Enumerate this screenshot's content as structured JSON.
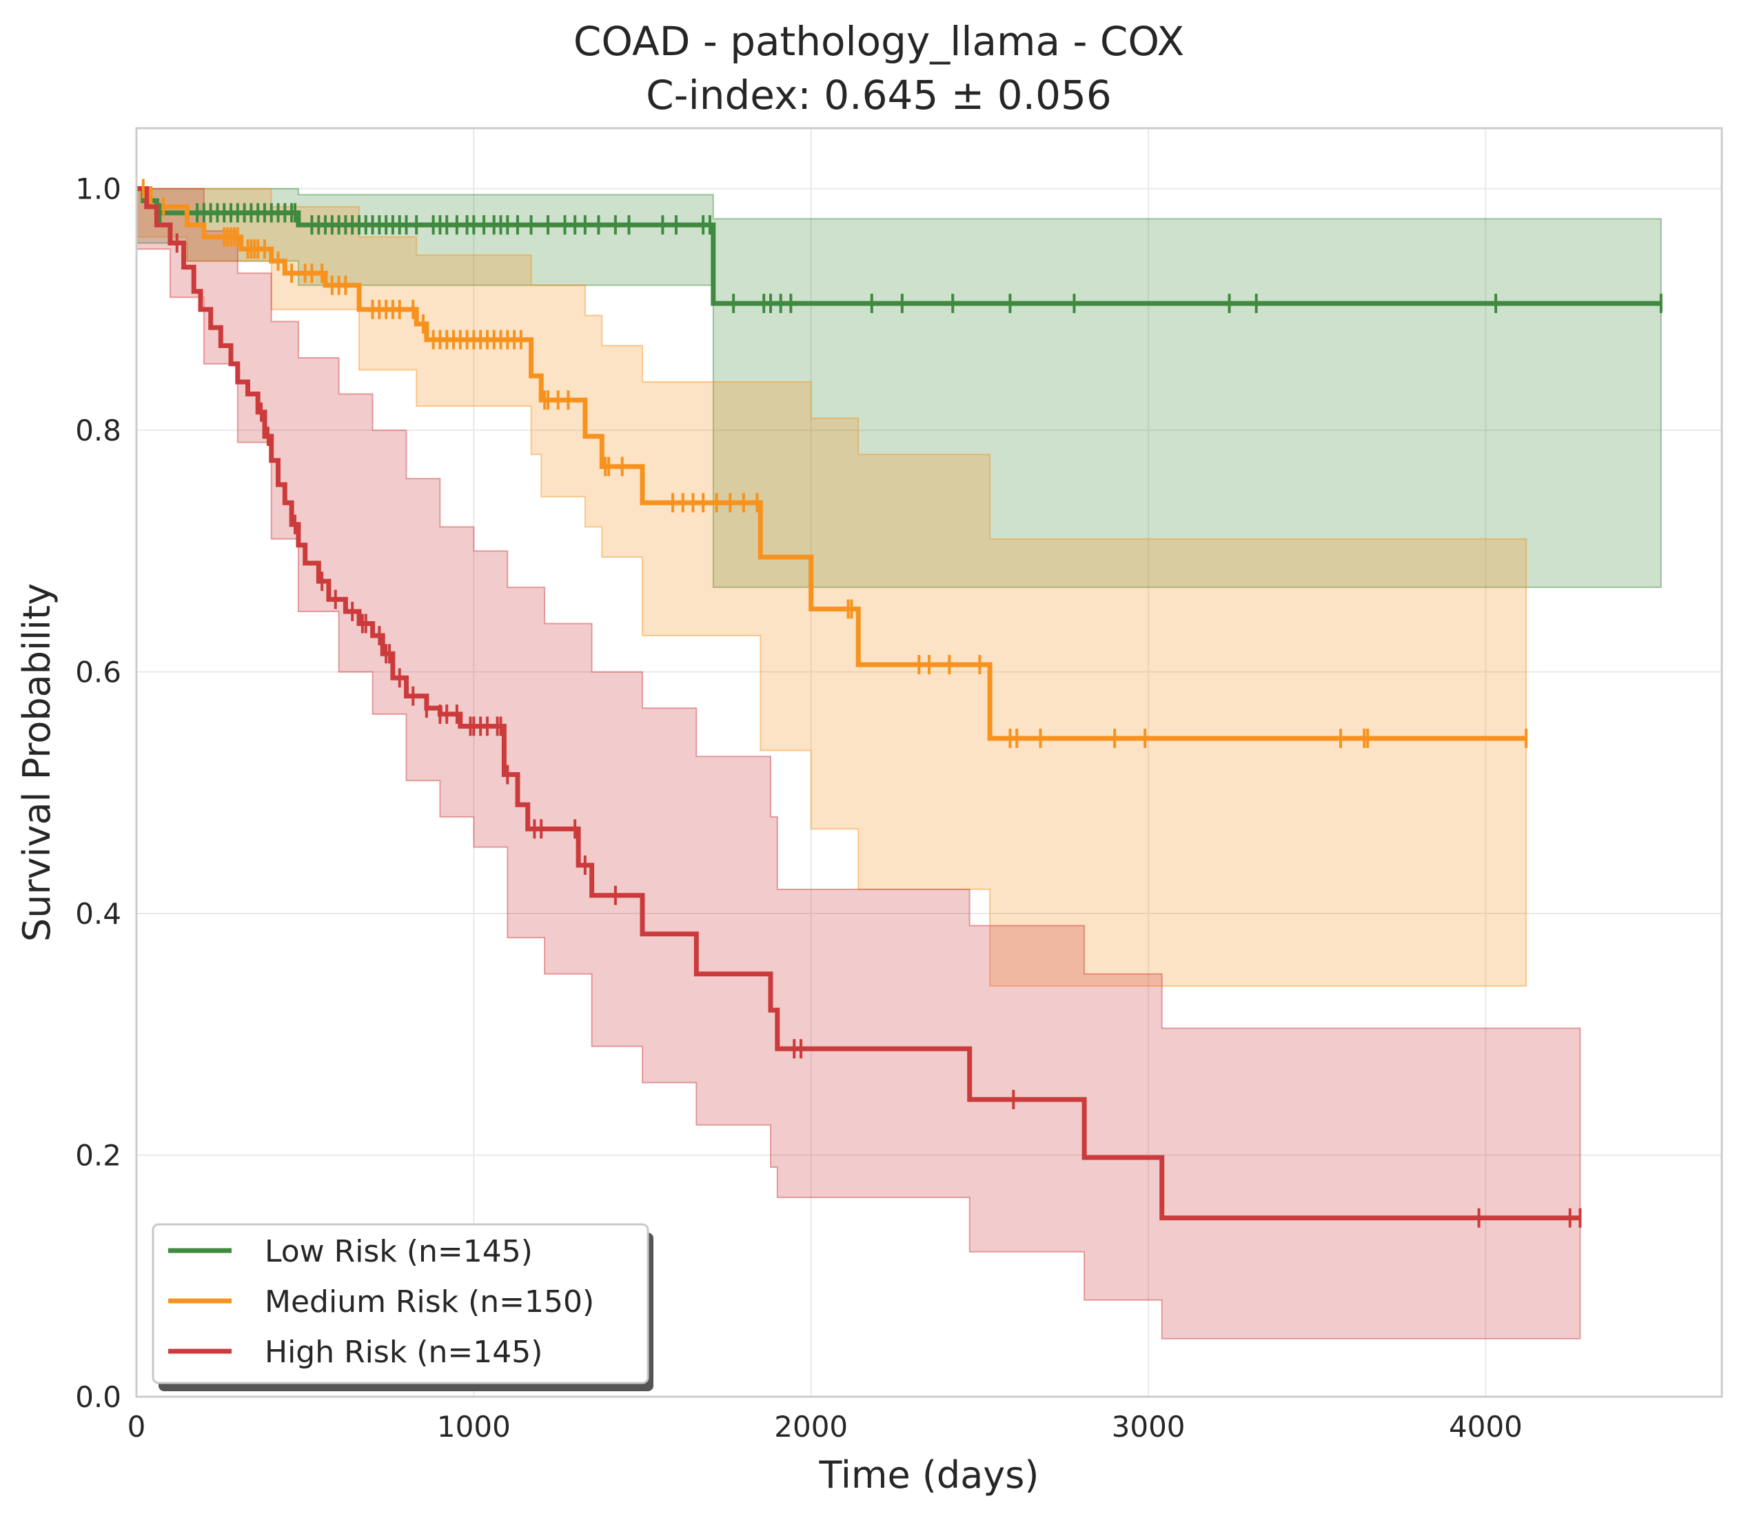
{
  "chart_data": {
    "type": "line",
    "title": "COAD - pathology_llama - COX",
    "subtitle": "C-index: 0.645 ± 0.056",
    "xlabel": "Time (days)",
    "ylabel": "Survival Probability",
    "xlim": [
      0,
      4700
    ],
    "ylim": [
      0,
      1.05
    ],
    "xticks": [
      0,
      1000,
      2000,
      3000,
      4000
    ],
    "xtick_labels": [
      "0",
      "1000",
      "2000",
      "3000",
      "4000"
    ],
    "yticks": [
      0.0,
      0.2,
      0.4,
      0.6,
      0.8,
      1.0
    ],
    "ytick_labels": [
      "0.0",
      "0.2",
      "0.4",
      "0.6",
      "0.8",
      "1.0"
    ],
    "grid": true,
    "legend_position": "bottom-left",
    "series": [
      {
        "name": "Low Risk (n=145)",
        "color": "#3f8a3f",
        "steps": [
          [
            0,
            1.0
          ],
          [
            20,
            0.99
          ],
          [
            60,
            0.98
          ],
          [
            480,
            0.97
          ],
          [
            1710,
            0.905
          ],
          [
            4520,
            0.905
          ]
        ],
        "ci_upper": [
          [
            0,
            1.0
          ],
          [
            480,
            0.995
          ],
          [
            1710,
            0.99
          ],
          [
            1710,
            0.975
          ],
          [
            4520,
            0.975
          ]
        ],
        "ci_lower": [
          [
            0,
            0.955
          ],
          [
            150,
            0.94
          ],
          [
            480,
            0.92
          ],
          [
            1710,
            0.67
          ],
          [
            4520,
            0.67
          ]
        ],
        "censor_times": [
          70,
          180,
          200,
          220,
          240,
          260,
          280,
          300,
          320,
          340,
          360,
          380,
          400,
          420,
          440,
          460,
          470,
          520,
          540,
          560,
          580,
          600,
          620,
          640,
          660,
          680,
          700,
          720,
          740,
          760,
          780,
          800,
          830,
          880,
          900,
          920,
          950,
          980,
          1000,
          1030,
          1060,
          1080,
          1100,
          1130,
          1170,
          1220,
          1270,
          1300,
          1330,
          1370,
          1420,
          1460,
          1560,
          1600,
          1680,
          1700,
          1770,
          1860,
          1880,
          1910,
          1940,
          2180,
          2270,
          2420,
          2590,
          2780,
          3240,
          3320,
          4030,
          4520
        ]
      },
      {
        "name": "Medium Risk (n=150)",
        "color": "#f7921e",
        "steps": [
          [
            0,
            1.0
          ],
          [
            40,
            0.985
          ],
          [
            150,
            0.97
          ],
          [
            200,
            0.96
          ],
          [
            310,
            0.95
          ],
          [
            400,
            0.94
          ],
          [
            440,
            0.93
          ],
          [
            560,
            0.92
          ],
          [
            660,
            0.9
          ],
          [
            830,
            0.888
          ],
          [
            860,
            0.875
          ],
          [
            1170,
            0.845
          ],
          [
            1200,
            0.825
          ],
          [
            1330,
            0.795
          ],
          [
            1380,
            0.77
          ],
          [
            1500,
            0.74
          ],
          [
            1850,
            0.695
          ],
          [
            2000,
            0.652
          ],
          [
            2140,
            0.606
          ],
          [
            2530,
            0.545
          ],
          [
            4120,
            0.545
          ]
        ],
        "ci_upper": [
          [
            0,
            1.0
          ],
          [
            150,
            1.0
          ],
          [
            400,
            0.985
          ],
          [
            660,
            0.96
          ],
          [
            830,
            0.945
          ],
          [
            1170,
            0.92
          ],
          [
            1330,
            0.895
          ],
          [
            1380,
            0.87
          ],
          [
            1500,
            0.84
          ],
          [
            1850,
            0.84
          ],
          [
            2000,
            0.81
          ],
          [
            2140,
            0.78
          ],
          [
            2530,
            0.75
          ],
          [
            2530,
            0.71
          ],
          [
            4120,
            0.71
          ]
        ],
        "ci_lower": [
          [
            0,
            0.96
          ],
          [
            150,
            0.94
          ],
          [
            400,
            0.9
          ],
          [
            660,
            0.85
          ],
          [
            830,
            0.82
          ],
          [
            1170,
            0.78
          ],
          [
            1200,
            0.745
          ],
          [
            1330,
            0.72
          ],
          [
            1380,
            0.695
          ],
          [
            1500,
            0.63
          ],
          [
            1850,
            0.535
          ],
          [
            2000,
            0.47
          ],
          [
            2140,
            0.42
          ],
          [
            2530,
            0.34
          ],
          [
            4120,
            0.34
          ]
        ],
        "censor_times": [
          20,
          80,
          260,
          270,
          280,
          290,
          300,
          330,
          340,
          350,
          360,
          380,
          420,
          460,
          500,
          520,
          550,
          580,
          600,
          620,
          700,
          720,
          740,
          760,
          780,
          820,
          850,
          880,
          900,
          920,
          940,
          960,
          980,
          1000,
          1020,
          1040,
          1060,
          1080,
          1100,
          1120,
          1140,
          1210,
          1220,
          1250,
          1280,
          1390,
          1400,
          1440,
          1590,
          1620,
          1650,
          1680,
          1720,
          1760,
          1800,
          1840,
          2110,
          2120,
          2320,
          2350,
          2410,
          2500,
          2590,
          2610,
          2680,
          2900,
          2990,
          3570,
          3640,
          3650,
          4120
        ]
      },
      {
        "name": "High Risk (n=145)",
        "color": "#cc3b3b",
        "steps": [
          [
            0,
            1.0
          ],
          [
            30,
            0.985
          ],
          [
            60,
            0.97
          ],
          [
            100,
            0.955
          ],
          [
            140,
            0.935
          ],
          [
            170,
            0.915
          ],
          [
            190,
            0.9
          ],
          [
            220,
            0.885
          ],
          [
            250,
            0.87
          ],
          [
            280,
            0.855
          ],
          [
            300,
            0.84
          ],
          [
            330,
            0.83
          ],
          [
            360,
            0.815
          ],
          [
            380,
            0.795
          ],
          [
            400,
            0.775
          ],
          [
            420,
            0.755
          ],
          [
            440,
            0.74
          ],
          [
            460,
            0.722
          ],
          [
            480,
            0.705
          ],
          [
            500,
            0.69
          ],
          [
            540,
            0.675
          ],
          [
            570,
            0.66
          ],
          [
            620,
            0.65
          ],
          [
            660,
            0.64
          ],
          [
            700,
            0.63
          ],
          [
            730,
            0.615
          ],
          [
            760,
            0.595
          ],
          [
            800,
            0.58
          ],
          [
            860,
            0.57
          ],
          [
            900,
            0.565
          ],
          [
            960,
            0.555
          ],
          [
            1090,
            0.515
          ],
          [
            1130,
            0.49
          ],
          [
            1160,
            0.47
          ],
          [
            1210,
            0.47
          ],
          [
            1310,
            0.44
          ],
          [
            1350,
            0.415
          ],
          [
            1500,
            0.383
          ],
          [
            1660,
            0.35
          ],
          [
            1880,
            0.32
          ],
          [
            1900,
            0.288
          ],
          [
            2470,
            0.246
          ],
          [
            2810,
            0.198
          ],
          [
            3040,
            0.148
          ],
          [
            4280,
            0.148
          ]
        ],
        "ci_upper": [
          [
            0,
            1.0
          ],
          [
            100,
            1.0
          ],
          [
            200,
            0.965
          ],
          [
            300,
            0.93
          ],
          [
            400,
            0.89
          ],
          [
            480,
            0.86
          ],
          [
            600,
            0.83
          ],
          [
            700,
            0.8
          ],
          [
            800,
            0.76
          ],
          [
            900,
            0.72
          ],
          [
            1000,
            0.7
          ],
          [
            1100,
            0.67
          ],
          [
            1210,
            0.64
          ],
          [
            1350,
            0.6
          ],
          [
            1500,
            0.57
          ],
          [
            1660,
            0.53
          ],
          [
            1880,
            0.48
          ],
          [
            1900,
            0.42
          ],
          [
            2470,
            0.42
          ],
          [
            2470,
            0.39
          ],
          [
            2810,
            0.39
          ],
          [
            2810,
            0.35
          ],
          [
            3040,
            0.35
          ],
          [
            3040,
            0.305
          ],
          [
            4280,
            0.305
          ]
        ],
        "ci_lower": [
          [
            0,
            0.95
          ],
          [
            100,
            0.91
          ],
          [
            200,
            0.855
          ],
          [
            300,
            0.79
          ],
          [
            400,
            0.71
          ],
          [
            480,
            0.65
          ],
          [
            600,
            0.6
          ],
          [
            700,
            0.565
          ],
          [
            800,
            0.51
          ],
          [
            900,
            0.48
          ],
          [
            1000,
            0.455
          ],
          [
            1100,
            0.38
          ],
          [
            1210,
            0.35
          ],
          [
            1350,
            0.29
          ],
          [
            1500,
            0.26
          ],
          [
            1660,
            0.225
          ],
          [
            1880,
            0.19
          ],
          [
            1900,
            0.165
          ],
          [
            2470,
            0.165
          ],
          [
            2470,
            0.12
          ],
          [
            2810,
            0.12
          ],
          [
            2810,
            0.08
          ],
          [
            3040,
            0.08
          ],
          [
            3040,
            0.048
          ],
          [
            4280,
            0.048
          ]
        ],
        "censor_times": [
          120,
          370,
          390,
          470,
          470,
          550,
          590,
          640,
          670,
          680,
          720,
          740,
          750,
          780,
          820,
          860,
          900,
          920,
          950,
          990,
          1000,
          1020,
          1040,
          1070,
          1080,
          1100,
          1180,
          1200,
          1300,
          1330,
          1420,
          1950,
          1970,
          2600,
          3980,
          4250,
          4280
        ]
      }
    ]
  }
}
